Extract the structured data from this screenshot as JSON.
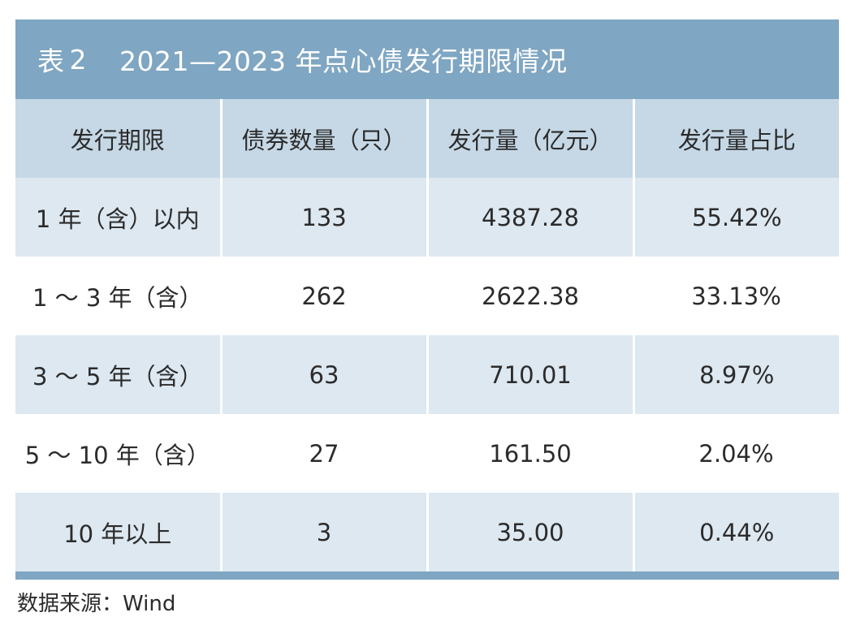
{
  "title": {
    "prefix": "表",
    "number": "2",
    "text": "2021—2023 年点心债发行期限情况"
  },
  "chart_data": {
    "type": "table",
    "columns": [
      "发行期限",
      "债券数量（只）",
      "发行量（亿元）",
      "发行量占比"
    ],
    "rows": [
      [
        "1 年（含）以内",
        "133",
        "4387.28",
        "55.42%"
      ],
      [
        "1 ～ 3 年（含）",
        "262",
        "2622.38",
        "33.13%"
      ],
      [
        "3 ～ 5 年（含）",
        "63",
        "710.01",
        "8.97%"
      ],
      [
        "5 ～ 10 年（含）",
        "27",
        "161.50",
        "2.04%"
      ],
      [
        "10 年以上",
        "3",
        "35.00",
        "0.44%"
      ]
    ]
  },
  "source": "数据来源：Wind",
  "colors": {
    "title_bar": "#7fa6c2",
    "header_row": "#c6d8e6",
    "shaded_row": "#dde8f1",
    "plain_row": "#ffffff"
  }
}
